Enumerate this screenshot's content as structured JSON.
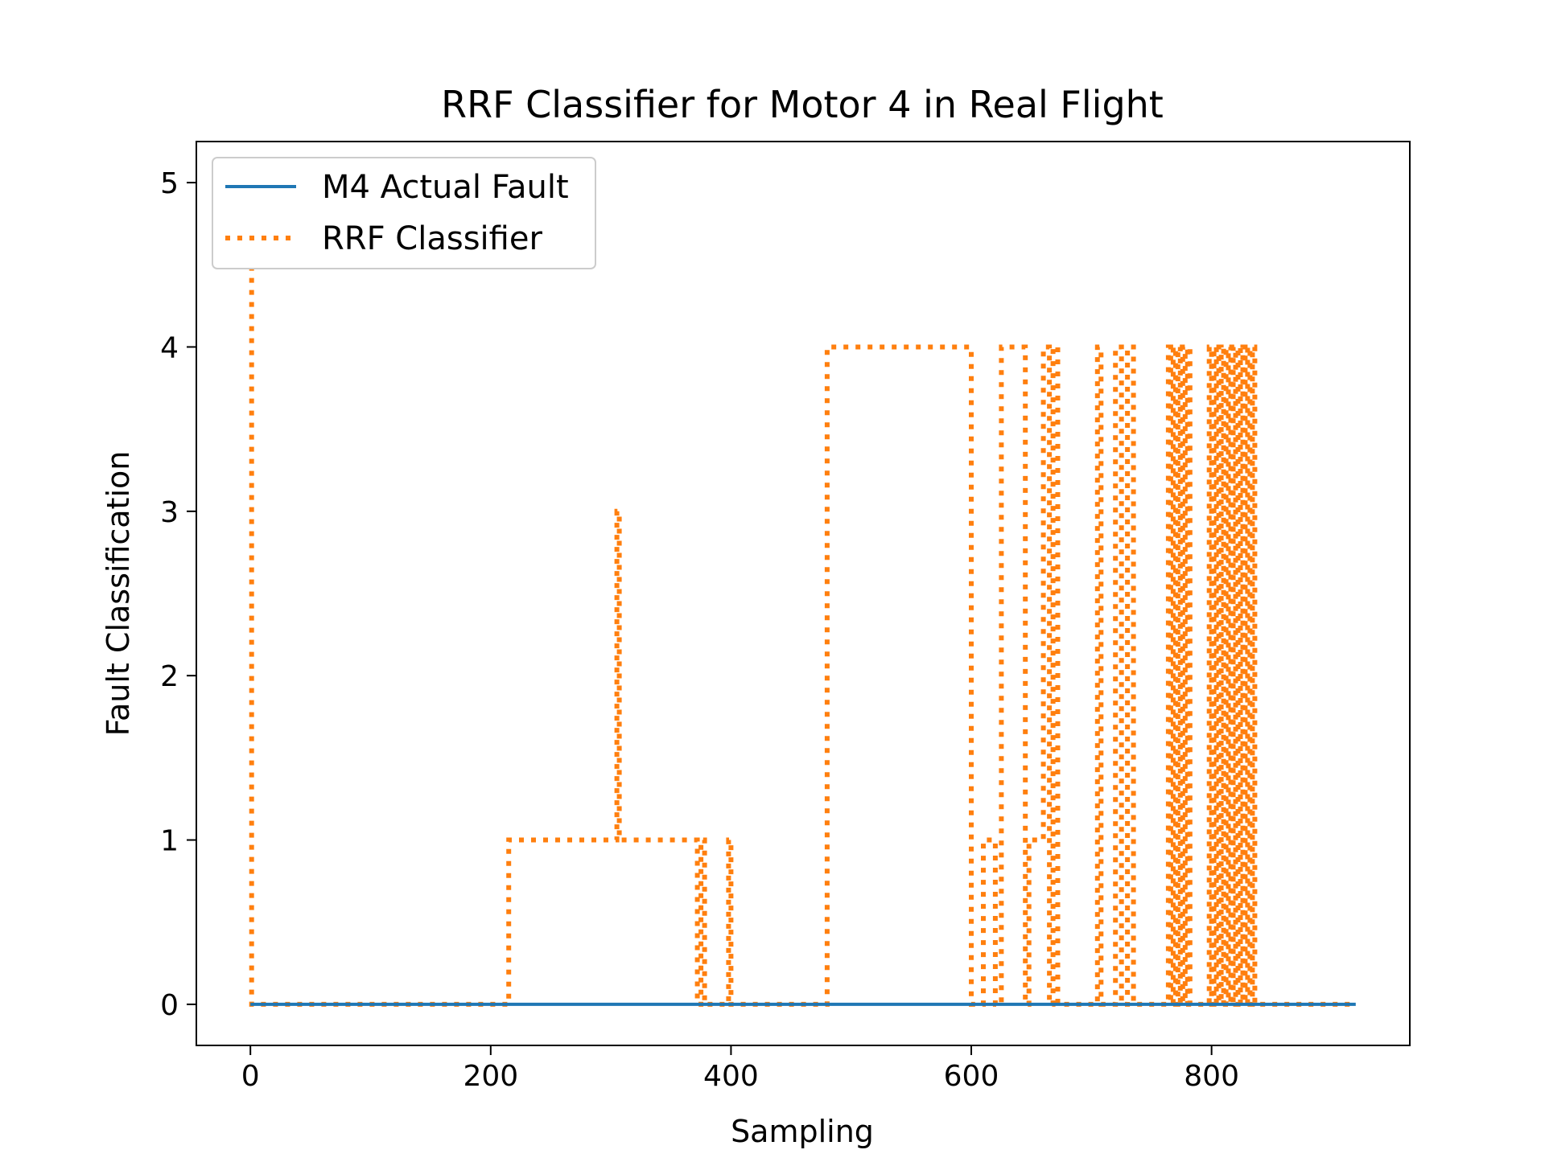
{
  "chart_data": {
    "type": "line",
    "title": "RRF Classifier for Motor 4 in Real Flight",
    "xlabel": "Sampling",
    "ylabel": "Fault Classification",
    "xlim": [
      -45,
      965
    ],
    "ylim": [
      -0.25,
      5.25
    ],
    "xticks": [
      0,
      200,
      400,
      600,
      800
    ],
    "yticks": [
      0,
      1,
      2,
      3,
      4,
      5
    ],
    "grid": false,
    "legend_position": "upper-left",
    "colors": {
      "actual": "#1f77b4",
      "classifier": "#ff7f0e"
    },
    "series": [
      {
        "name": "M4 Actual Fault",
        "style": "solid",
        "x": [
          0,
          920
        ],
        "y": [
          0,
          0
        ]
      },
      {
        "name": "RRF Classifier",
        "style": "dotted",
        "step": true,
        "x": [
          0,
          1,
          215,
          305,
          307,
          310,
          372,
          375,
          378,
          398,
          400,
          480,
          600,
          610,
          620,
          625,
          630,
          638,
          645,
          648,
          660,
          665,
          668,
          672,
          705,
          708,
          720,
          725,
          730,
          735,
          764,
          766,
          768,
          770,
          772,
          774,
          776,
          778,
          780,
          782,
          798,
          800,
          802,
          804,
          806,
          808,
          810,
          812,
          814,
          816,
          818,
          820,
          822,
          824,
          826,
          828,
          830,
          832,
          834,
          836,
          920
        ],
        "y": [
          5,
          0,
          1,
          3,
          1,
          1,
          0,
          1,
          0,
          1,
          0,
          4,
          0,
          1,
          0,
          4,
          4,
          4,
          0,
          1,
          4,
          0,
          4,
          0,
          4,
          0,
          4,
          0,
          4,
          0,
          4,
          0,
          4,
          0,
          4,
          0,
          4,
          0,
          4,
          0,
          4,
          0,
          4,
          0,
          4,
          0,
          4,
          0,
          4,
          0,
          4,
          0,
          4,
          0,
          4,
          0,
          4,
          0,
          4,
          0,
          0
        ]
      }
    ]
  }
}
